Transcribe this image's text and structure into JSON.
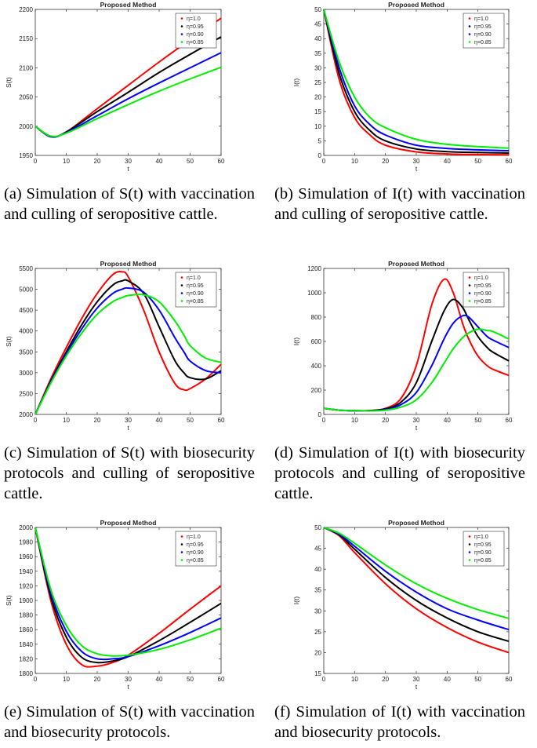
{
  "legend_labels": [
    "η=1.0",
    "η=0.95",
    "η=0.90",
    "η=0.85"
  ],
  "series_colors": [
    "#ff0000",
    "#000000",
    "#0000ff",
    "#00ee00"
  ],
  "captions": [
    "(a) Simulation of S(t) with vaccination and culling of seropositive cattle.",
    "(b) Simulation of I(t) with vaccination and culling of seropositive cattle.",
    "(c) Simulation of S(t) with biosecurity protocols and culling of seropositive cattle.",
    "(d) Simulation of I(t) with biosecurity protocols and culling of seropositive cattle.",
    "(e) Simulation of S(t) with vaccination and biosecurity protocols.",
    "(f) Simulation of I(t) with vaccination and biosecurity protocols."
  ],
  "chart_data": [
    {
      "type": "line",
      "title": "Proposed Method",
      "xlabel": "t",
      "ylabel": "S(t)",
      "xlim": [
        0,
        60
      ],
      "ylim": [
        1950,
        2200
      ],
      "xticks": [
        0,
        10,
        20,
        30,
        40,
        50,
        60
      ],
      "yticks": [
        1950,
        2000,
        2050,
        2100,
        2150,
        2200
      ],
      "x": [
        0,
        5,
        10,
        20,
        30,
        40,
        50,
        60
      ],
      "series": [
        {
          "name": "η=1.0",
          "values": [
            2000,
            1982,
            1990,
            2030,
            2070,
            2110,
            2148,
            2185
          ]
        },
        {
          "name": "η=0.95",
          "values": [
            2000,
            1982,
            1990,
            2025,
            2058,
            2092,
            2123,
            2153
          ]
        },
        {
          "name": "η=0.90",
          "values": [
            2000,
            1982,
            1989,
            2018,
            2047,
            2074,
            2100,
            2126
          ]
        },
        {
          "name": "η=0.85",
          "values": [
            2000,
            1983,
            1988,
            2013,
            2037,
            2060,
            2081,
            2101
          ]
        }
      ]
    },
    {
      "type": "line",
      "title": "Proposed Method",
      "xlabel": "t",
      "ylabel": "I(t)",
      "xlim": [
        0,
        60
      ],
      "ylim": [
        0,
        50
      ],
      "xticks": [
        0,
        10,
        20,
        30,
        40,
        50,
        60
      ],
      "yticks": [
        0,
        5,
        10,
        15,
        20,
        25,
        30,
        35,
        40,
        45,
        50
      ],
      "x": [
        0,
        5,
        10,
        15,
        20,
        30,
        40,
        50,
        60
      ],
      "series": [
        {
          "name": "η=1.0",
          "values": [
            50,
            26,
            13,
            7,
            3.5,
            1.2,
            0.5,
            0.3,
            0.2
          ]
        },
        {
          "name": "η=0.95",
          "values": [
            50,
            28,
            15,
            8.5,
            5,
            2.2,
            1.3,
            1.0,
            0.8
          ]
        },
        {
          "name": "η=0.90",
          "values": [
            50,
            30,
            17,
            10.5,
            7,
            3.5,
            2.4,
            1.9,
            1.6
          ]
        },
        {
          "name": "η=0.85",
          "values": [
            50,
            32,
            20,
            13,
            9.5,
            5.5,
            3.8,
            3.0,
            2.5
          ]
        }
      ]
    },
    {
      "type": "line",
      "title": "Proposed Method",
      "xlabel": "t",
      "ylabel": "S(t)",
      "xlim": [
        0,
        60
      ],
      "ylim": [
        2000,
        5500
      ],
      "xticks": [
        0,
        10,
        20,
        30,
        40,
        50,
        60
      ],
      "yticks": [
        2000,
        2500,
        3000,
        3500,
        4000,
        4500,
        5000,
        5500
      ],
      "x": [
        0,
        5,
        10,
        15,
        20,
        25,
        28,
        30,
        35,
        40,
        45,
        48,
        50,
        55,
        60
      ],
      "series": [
        {
          "name": "η=1.0",
          "values": [
            2000,
            2850,
            3600,
            4300,
            4900,
            5350,
            5420,
            5300,
            4500,
            3500,
            2750,
            2590,
            2620,
            2850,
            3200
          ]
        },
        {
          "name": "η=0.95",
          "values": [
            2000,
            2800,
            3500,
            4150,
            4700,
            5100,
            5200,
            5200,
            4900,
            4100,
            3300,
            3000,
            2880,
            2850,
            3050
          ]
        },
        {
          "name": "η=0.90",
          "values": [
            2000,
            2780,
            3450,
            4050,
            4550,
            4900,
            5000,
            5030,
            4930,
            4500,
            3850,
            3500,
            3280,
            3050,
            3000
          ]
        },
        {
          "name": "η=0.85",
          "values": [
            2000,
            2750,
            3400,
            3950,
            4400,
            4700,
            4800,
            4850,
            4870,
            4700,
            4250,
            3900,
            3650,
            3350,
            3250
          ]
        }
      ]
    },
    {
      "type": "line",
      "title": "Proposed Method",
      "xlabel": "t",
      "ylabel": "I(t)",
      "xlim": [
        0,
        60
      ],
      "ylim": [
        0,
        1200
      ],
      "xticks": [
        0,
        10,
        20,
        30,
        40,
        50,
        60
      ],
      "yticks": [
        0,
        200,
        400,
        600,
        800,
        1000,
        1200
      ],
      "x": [
        0,
        5,
        10,
        15,
        20,
        25,
        30,
        35,
        39,
        42,
        45,
        47,
        50,
        53,
        55,
        60
      ],
      "series": [
        {
          "name": "η=1.0",
          "values": [
            50,
            35,
            30,
            32,
            50,
            130,
            400,
            900,
            1110,
            1000,
            750,
            620,
            480,
            400,
            370,
            320
          ]
        },
        {
          "name": "η=0.95",
          "values": [
            50,
            35,
            30,
            31,
            45,
            100,
            260,
            600,
            850,
            945,
            880,
            780,
            640,
            550,
            510,
            440
          ]
        },
        {
          "name": "η=0.90",
          "values": [
            50,
            35,
            30,
            30,
            40,
            80,
            180,
            400,
            620,
            750,
            810,
            800,
            720,
            640,
            610,
            550
          ]
        },
        {
          "name": "η=0.85",
          "values": [
            50,
            35,
            30,
            29,
            35,
            60,
            120,
            260,
            420,
            540,
            630,
            670,
            700,
            690,
            680,
            620
          ]
        }
      ]
    },
    {
      "type": "line",
      "title": "Proposed Method",
      "xlabel": "t",
      "ylabel": "S(t)",
      "xlim": [
        0,
        60
      ],
      "ylim": [
        1800,
        2000
      ],
      "xticks": [
        0,
        10,
        20,
        30,
        40,
        50,
        60
      ],
      "yticks": [
        1800,
        1820,
        1840,
        1860,
        1880,
        1900,
        1920,
        1940,
        1960,
        1980,
        2000
      ],
      "x": [
        0,
        5,
        10,
        15,
        20,
        25,
        30,
        40,
        50,
        60
      ],
      "series": [
        {
          "name": "η=1.0",
          "values": [
            2000,
            1900,
            1840,
            1812,
            1810,
            1815,
            1825,
            1855,
            1888,
            1920
          ]
        },
        {
          "name": "η=0.95",
          "values": [
            2000,
            1905,
            1850,
            1822,
            1815,
            1817,
            1823,
            1845,
            1870,
            1896
          ]
        },
        {
          "name": "η=0.90",
          "values": [
            2000,
            1910,
            1858,
            1830,
            1820,
            1820,
            1823,
            1838,
            1856,
            1876
          ]
        },
        {
          "name": "η=0.85",
          "values": [
            2000,
            1915,
            1866,
            1838,
            1827,
            1824,
            1825,
            1833,
            1846,
            1862
          ]
        }
      ]
    },
    {
      "type": "line",
      "title": "Proposed Method",
      "xlabel": "t",
      "ylabel": "I(t)",
      "xlim": [
        0,
        60
      ],
      "ylim": [
        15,
        50
      ],
      "xticks": [
        0,
        10,
        20,
        30,
        40,
        50,
        60
      ],
      "yticks": [
        15,
        20,
        25,
        30,
        35,
        40,
        45,
        50
      ],
      "x": [
        0,
        5,
        10,
        20,
        30,
        40,
        50,
        60
      ],
      "series": [
        {
          "name": "η=1.0",
          "values": [
            50,
            48,
            44,
            36.5,
            30.5,
            26,
            22.5,
            20
          ]
        },
        {
          "name": "η=0.95",
          "values": [
            50,
            48.2,
            44.8,
            38,
            32.5,
            28.3,
            25,
            22.7
          ]
        },
        {
          "name": "η=0.90",
          "values": [
            50,
            48.4,
            45.5,
            39.5,
            34.5,
            30.5,
            27.8,
            25.5
          ]
        },
        {
          "name": "η=0.85",
          "values": [
            50,
            48.6,
            46.2,
            41,
            36.5,
            33,
            30.3,
            28.2
          ]
        }
      ]
    }
  ]
}
